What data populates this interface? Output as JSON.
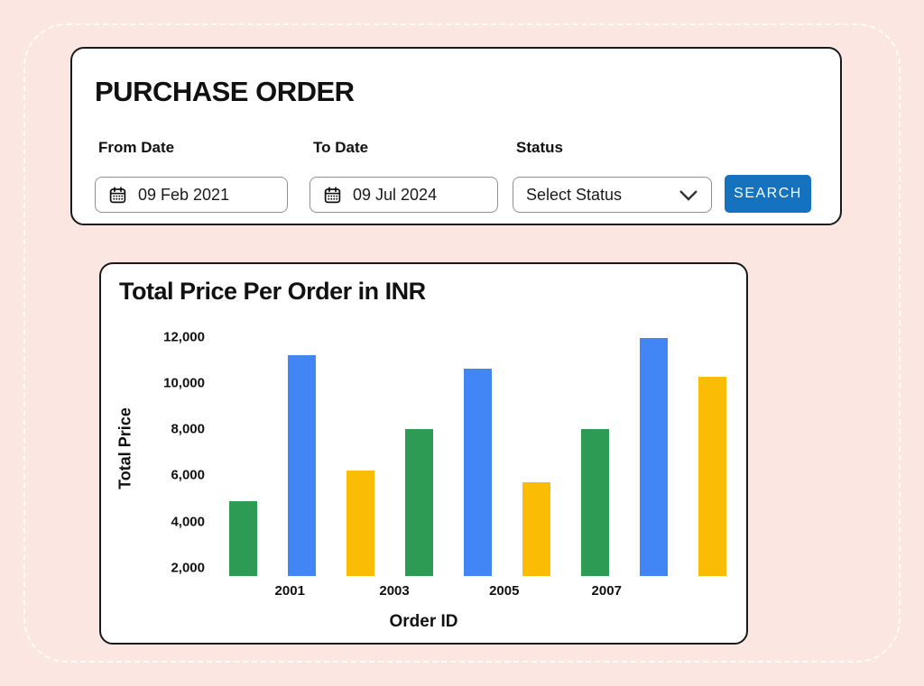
{
  "page": {
    "background_color": "#FCE6E2"
  },
  "purchase_order": {
    "title": "PURCHASE ORDER",
    "fields": [
      {
        "label": "From Date",
        "value": "09 Feb 2021"
      },
      {
        "label": "To Date",
        "value": "09 Jul 2024"
      },
      {
        "label": "Status",
        "value": "Select Status"
      }
    ],
    "search_label": "SEARCH",
    "search_color": "#1572BF"
  },
  "chart_card": {
    "title": "Total Price Per Order in INR"
  },
  "chart_data": {
    "type": "bar",
    "title": "Total Price Per Order in INR",
    "xlabel": "Order ID",
    "ylabel": "Total Price",
    "y_ticks": [
      2000,
      4000,
      6000,
      8000,
      10000,
      12000
    ],
    "y_tick_labels": [
      "2,000",
      "4,000",
      "6,000",
      "8,000",
      "10,000",
      "12,000"
    ],
    "ylim": [
      1650,
      12450
    ],
    "grid": false,
    "legend": false,
    "bars": [
      {
        "value": 4900,
        "color": "#2E9B55"
      },
      {
        "value": 11200,
        "color": "#4285F4"
      },
      {
        "value": 6200,
        "color": "#FBBC05"
      },
      {
        "value": 8000,
        "color": "#2E9B55"
      },
      {
        "value": 10600,
        "color": "#4285F4"
      },
      {
        "value": 5700,
        "color": "#FBBC05"
      },
      {
        "value": 8000,
        "color": "#2E9B55"
      },
      {
        "value": 11950,
        "color": "#4285F4"
      },
      {
        "value": 10250,
        "color": "#FBBC05"
      }
    ],
    "x_ticks": [
      {
        "label": "2001",
        "pos_pct": 14.4
      },
      {
        "label": "2003",
        "pos_pct": 34.2
      },
      {
        "label": "2005",
        "pos_pct": 55.0
      },
      {
        "label": "2007",
        "pos_pct": 74.4
      }
    ]
  }
}
